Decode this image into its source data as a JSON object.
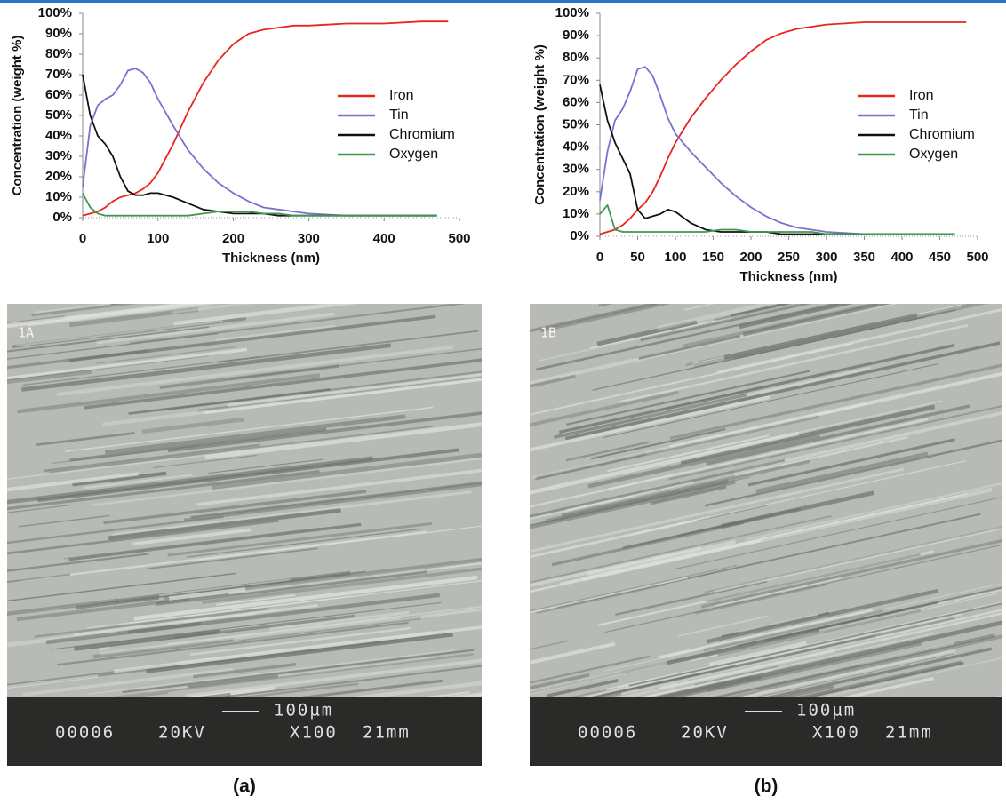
{
  "chart_data": [
    {
      "type": "line",
      "xlabel": "Thickness (nm)",
      "ylabel": "Concentration (weight %)",
      "x": [
        0,
        10,
        20,
        30,
        40,
        50,
        60,
        70,
        80,
        90,
        100,
        120,
        140,
        160,
        180,
        200,
        220,
        240,
        260,
        280,
        300,
        350,
        400,
        450,
        470,
        485
      ],
      "xlim": [
        0,
        500
      ],
      "xticks": [
        0,
        100,
        200,
        300,
        400,
        500
      ],
      "ylim": [
        0,
        100
      ],
      "yticks": [
        {
          "value": 0,
          "label": "0%"
        },
        {
          "value": 10,
          "label": "10%"
        },
        {
          "value": 20,
          "label": "20%"
        },
        {
          "value": 30,
          "label": "30%"
        },
        {
          "value": 40,
          "label": "40%"
        },
        {
          "value": 50,
          "label": "50%"
        },
        {
          "value": 60,
          "label": "60%"
        },
        {
          "value": 70,
          "label": "70%"
        },
        {
          "value": 80,
          "label": "80%"
        },
        {
          "value": 90,
          "label": "90%"
        },
        {
          "value": 100,
          "label": "100%"
        }
      ],
      "legend": "right",
      "series": [
        {
          "name": "Iron",
          "color": "#e8261e",
          "values": [
            1,
            2,
            3,
            5,
            8,
            10,
            11,
            12,
            14,
            17,
            22,
            36,
            52,
            66,
            77,
            85,
            90,
            92,
            93,
            94,
            94,
            95,
            95,
            96,
            96,
            96
          ]
        },
        {
          "name": "Tin",
          "color": "#7b6fd0",
          "values": [
            15,
            45,
            55,
            58,
            60,
            65,
            72,
            73,
            71,
            66,
            58,
            45,
            33,
            24,
            17,
            12,
            8,
            5,
            4,
            3,
            2,
            1,
            1,
            1,
            1,
            null
          ]
        },
        {
          "name": "Chromium",
          "color": "#111111",
          "values": [
            70,
            50,
            40,
            36,
            30,
            20,
            13,
            11,
            11,
            12,
            12,
            10,
            7,
            4,
            3,
            2,
            2,
            2,
            1,
            1,
            1,
            1,
            1,
            1,
            1,
            null
          ]
        },
        {
          "name": "Oxygen",
          "color": "#3a9a4a",
          "values": [
            12,
            5,
            2,
            1,
            1,
            1,
            1,
            1,
            1,
            1,
            1,
            1,
            1,
            2,
            3,
            3,
            3,
            2,
            2,
            1,
            1,
            1,
            1,
            1,
            1,
            null
          ]
        }
      ]
    },
    {
      "type": "line",
      "xlabel": "Thickness (nm)",
      "ylabel": "Concentration (weight %)",
      "x": [
        0,
        10,
        20,
        30,
        40,
        50,
        60,
        70,
        80,
        90,
        100,
        120,
        140,
        160,
        180,
        200,
        220,
        240,
        260,
        280,
        300,
        350,
        400,
        450,
        470,
        485
      ],
      "xlim": [
        0,
        500
      ],
      "xticks": [
        0,
        50,
        100,
        150,
        200,
        250,
        300,
        350,
        400,
        450,
        500
      ],
      "ylim": [
        0,
        100
      ],
      "yticks": [
        {
          "value": 0,
          "label": "0%"
        },
        {
          "value": 10,
          "label": "10%"
        },
        {
          "value": 20,
          "label": "20%"
        },
        {
          "value": 30,
          "label": "30%"
        },
        {
          "value": 40,
          "label": "40%"
        },
        {
          "value": 50,
          "label": "50%"
        },
        {
          "value": 60,
          "label": "60%"
        },
        {
          "value": 70,
          "label": "70%"
        },
        {
          "value": 80,
          "label": "80%"
        },
        {
          "value": 90,
          "label": "90%"
        },
        {
          "value": 100,
          "label": "100%"
        }
      ],
      "legend": "right",
      "series": [
        {
          "name": "Iron",
          "color": "#e8261e",
          "values": [
            1,
            2,
            3,
            5,
            8,
            12,
            15,
            20,
            27,
            35,
            42,
            53,
            62,
            70,
            77,
            83,
            88,
            91,
            93,
            94,
            95,
            96,
            96,
            96,
            96,
            96
          ]
        },
        {
          "name": "Tin",
          "color": "#7b6fd0",
          "values": [
            16,
            38,
            52,
            57,
            65,
            75,
            76,
            72,
            63,
            53,
            46,
            38,
            31,
            24,
            18,
            13,
            9,
            6,
            4,
            3,
            2,
            1,
            1,
            1,
            null,
            null
          ]
        },
        {
          "name": "Chromium",
          "color": "#111111",
          "values": [
            68,
            52,
            42,
            35,
            28,
            12,
            8,
            9,
            10,
            12,
            11,
            6,
            3,
            2,
            2,
            2,
            2,
            1,
            1,
            1,
            1,
            1,
            1,
            1,
            1,
            null
          ]
        },
        {
          "name": "Oxygen",
          "color": "#3a9a4a",
          "values": [
            10,
            14,
            3,
            2,
            2,
            2,
            2,
            2,
            2,
            2,
            2,
            2,
            2,
            3,
            3,
            2,
            2,
            2,
            2,
            2,
            1,
            1,
            1,
            1,
            1,
            null
          ]
        }
      ]
    }
  ],
  "images": [
    {
      "label": "1A",
      "scale": "100µm",
      "info": [
        "00006",
        "20KV",
        "X100",
        "21mm"
      ],
      "caption": "(a)"
    },
    {
      "label": "1B",
      "scale": "100µm",
      "info": [
        "00006",
        "20KV",
        "X100",
        "21mm"
      ],
      "caption": "(b)"
    }
  ]
}
